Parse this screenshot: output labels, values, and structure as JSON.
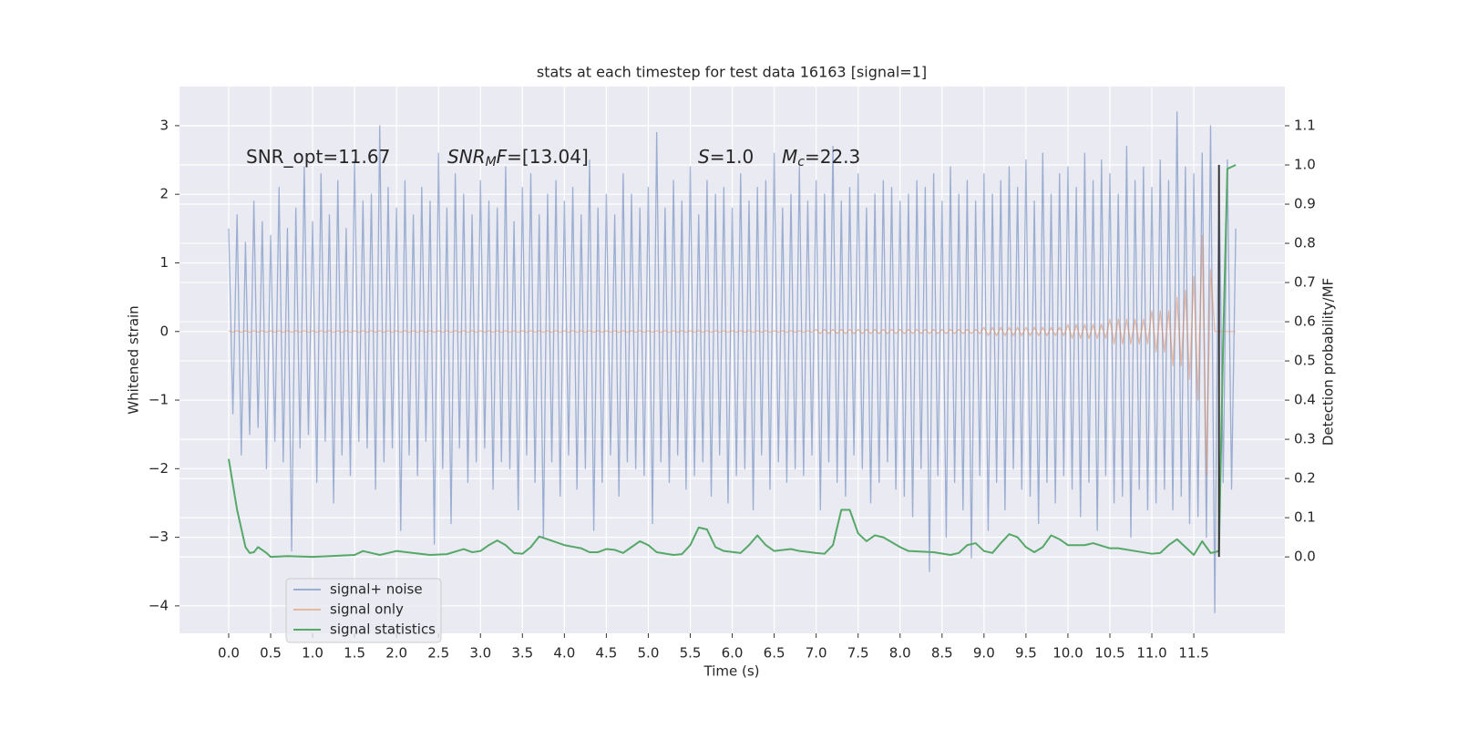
{
  "chart_data": {
    "type": "line",
    "title": "stats at each timestep for test data 16163 [signal=1]",
    "xlabel": "Time (s)",
    "ylabel": "Whitened strain",
    "y2label": "Detection probability/MF",
    "xlim": [
      -0.586,
      12.585
    ],
    "ylim": [
      -4.4,
      3.57
    ],
    "y2lim": [
      -0.195,
      1.2
    ],
    "xticks": [
      {
        "value": 0,
        "label": "0.0"
      },
      0.5,
      {
        "value": 1,
        "label": "1.0"
      },
      1.5,
      {
        "value": 2,
        "label": "2.0"
      },
      2.5,
      {
        "value": 3,
        "label": "3.0"
      },
      3.5,
      {
        "value": 4,
        "label": "4.0"
      },
      4.5,
      {
        "value": 5,
        "label": "5.0"
      },
      5.5,
      {
        "value": 6,
        "label": "6.0"
      },
      6.5,
      {
        "value": 7,
        "label": "7.0"
      },
      7.5,
      {
        "value": 8,
        "label": "8.0"
      },
      8.5,
      {
        "value": 9,
        "label": "9.0"
      },
      9.5,
      {
        "value": 10,
        "label": "10.0"
      },
      10.5,
      {
        "value": 11,
        "label": "11.0"
      },
      11.5
    ],
    "yticks": [
      {
        "value": -4,
        "label": "−4"
      },
      {
        "value": -3,
        "label": "−3"
      },
      {
        "value": -2,
        "label": "−2"
      },
      {
        "value": -1,
        "label": "−1"
      },
      0,
      1,
      2,
      3
    ],
    "y2ticks": [
      {
        "value": 0,
        "label": "0.0"
      },
      0.1,
      0.2,
      0.3,
      0.4,
      0.5,
      0.6,
      0.7,
      0.8,
      0.9,
      {
        "value": 1,
        "label": "1.0"
      },
      1.1
    ],
    "grid": true,
    "legend": "lower left",
    "annotations": [
      [
        {
          "text": "SNR_opt=11.67"
        }
      ],
      [
        {
          "text": "SNR",
          "italic": true
        },
        {
          "text": "M",
          "italic": true,
          "sub": true
        },
        {
          "text": "F",
          "italic": true
        },
        {
          "text": "=[13.04]"
        }
      ],
      [
        {
          "text": "S",
          "italic": true
        },
        {
          "text": "=1.0"
        }
      ],
      [
        {
          "text": "M",
          "italic": true
        },
        {
          "text": "c",
          "italic": true,
          "sub": true
        },
        {
          "text": "=22.3"
        }
      ]
    ],
    "x": [
      0,
      0.05,
      0.1,
      0.15,
      0.2,
      0.25,
      0.3,
      0.35,
      0.4,
      0.45,
      0.5,
      0.55,
      0.6,
      0.65,
      0.7,
      0.75,
      0.8,
      0.85,
      0.9,
      0.95,
      1,
      1.05,
      1.1,
      1.15,
      1.2,
      1.25,
      1.3,
      1.35,
      1.4,
      1.45,
      1.5,
      1.55,
      1.6,
      1.65,
      1.7,
      1.75,
      1.8,
      1.85,
      1.9,
      1.95,
      2,
      2.05,
      2.1,
      2.15,
      2.2,
      2.25,
      2.3,
      2.35,
      2.4,
      2.45,
      2.5,
      2.55,
      2.6,
      2.65,
      2.7,
      2.75,
      2.8,
      2.85,
      2.9,
      2.95,
      3,
      3.05,
      3.1,
      3.15,
      3.2,
      3.25,
      3.3,
      3.35,
      3.4,
      3.45,
      3.5,
      3.55,
      3.6,
      3.65,
      3.7,
      3.75,
      3.8,
      3.85,
      3.9,
      3.95,
      4,
      4.05,
      4.1,
      4.15,
      4.2,
      4.25,
      4.3,
      4.35,
      4.4,
      4.45,
      4.5,
      4.55,
      4.6,
      4.65,
      4.7,
      4.75,
      4.8,
      4.85,
      4.9,
      4.95,
      5,
      5.05,
      5.1,
      5.15,
      5.2,
      5.25,
      5.3,
      5.35,
      5.4,
      5.45,
      5.5,
      5.55,
      5.6,
      5.65,
      5.7,
      5.75,
      5.8,
      5.85,
      5.9,
      5.95,
      6,
      6.05,
      6.1,
      6.15,
      6.2,
      6.25,
      6.3,
      6.35,
      6.4,
      6.45,
      6.5,
      6.55,
      6.6,
      6.65,
      6.7,
      6.75,
      6.8,
      6.85,
      6.9,
      6.95,
      7,
      7.05,
      7.1,
      7.15,
      7.2,
      7.25,
      7.3,
      7.35,
      7.4,
      7.45,
      7.5,
      7.55,
      7.6,
      7.65,
      7.7,
      7.75,
      7.8,
      7.85,
      7.9,
      7.95,
      8,
      8.05,
      8.1,
      8.15,
      8.2,
      8.25,
      8.3,
      8.35,
      8.4,
      8.45,
      8.5,
      8.55,
      8.6,
      8.65,
      8.7,
      8.75,
      8.8,
      8.85,
      8.9,
      8.95,
      9,
      9.05,
      9.1,
      9.15,
      9.2,
      9.25,
      9.3,
      9.35,
      9.4,
      9.45,
      9.5,
      9.55,
      9.6,
      9.65,
      9.7,
      9.75,
      9.8,
      9.85,
      9.9,
      9.95,
      10,
      10.05,
      10.1,
      10.15,
      10.2,
      10.25,
      10.3,
      10.35,
      10.4,
      10.45,
      10.5,
      10.55,
      10.6,
      10.65,
      10.7,
      10.75,
      10.8,
      10.85,
      10.9,
      10.95,
      11,
      11.05,
      11.1,
      11.15,
      11.2,
      11.25,
      11.3,
      11.35,
      11.4,
      11.45,
      11.5,
      11.55,
      11.6,
      11.65,
      11.7,
      11.75,
      11.8,
      11.85,
      11.9,
      11.95,
      12
    ],
    "series": [
      {
        "name": "signal+ noise",
        "color": "#4c72b0",
        "alpha": 0.5,
        "values": [
          1.5,
          -1.2,
          1.7,
          -1.8,
          1.3,
          -1.5,
          1.9,
          -1.4,
          1.6,
          -2.0,
          1.4,
          -1.6,
          2.1,
          -1.9,
          1.5,
          -3.2,
          1.8,
          -1.7,
          2.4,
          -1.5,
          1.6,
          -2.2,
          2.3,
          -1.6,
          1.7,
          -2.5,
          2.2,
          -1.8,
          1.5,
          -2.1,
          2.5,
          -1.6,
          1.9,
          -1.7,
          2.0,
          -2.3,
          3.0,
          -1.9,
          2.1,
          -1.7,
          1.8,
          -2.9,
          2.2,
          -1.8,
          1.7,
          -2.1,
          2.1,
          -1.6,
          1.9,
          -3.1,
          2.6,
          -2.0,
          1.8,
          -2.8,
          2.3,
          -1.7,
          2.0,
          -2.2,
          1.7,
          -1.9,
          2.2,
          -1.7,
          1.9,
          -2.3,
          1.8,
          -1.9,
          2.4,
          -2.0,
          1.6,
          -2.6,
          2.1,
          -1.8,
          2.3,
          -2.2,
          1.7,
          -3.0,
          2.0,
          -1.9,
          2.2,
          -2.4,
          1.9,
          -1.8,
          2.1,
          -2.3,
          1.7,
          -2.0,
          2.5,
          -2.9,
          1.8,
          -2.2,
          2.0,
          -1.8,
          1.7,
          -2.4,
          2.3,
          -1.9,
          2.0,
          -2.0,
          1.8,
          -2.1,
          2.1,
          -2.8,
          2.9,
          -1.9,
          1.8,
          -2.2,
          2.2,
          -1.8,
          1.9,
          -2.3,
          2.4,
          -2.1,
          1.7,
          -1.9,
          2.2,
          -2.4,
          2.0,
          -1.8,
          2.1,
          -2.5,
          1.8,
          -2.1,
          2.3,
          -2.0,
          1.9,
          -2.6,
          2.1,
          -1.8,
          2.2,
          -2.3,
          2.6,
          -1.9,
          1.8,
          -2.2,
          2.0,
          -2.0,
          2.4,
          -2.1,
          1.9,
          -1.8,
          2.2,
          -2.6,
          2.0,
          -1.9,
          2.7,
          -2.2,
          1.9,
          -2.4,
          2.1,
          -1.8,
          2.3,
          -2.0,
          1.8,
          -2.5,
          2.0,
          -2.2,
          2.2,
          -1.9,
          2.1,
          -2.3,
          1.9,
          -2.4,
          2.0,
          -2.7,
          2.2,
          -2.0,
          2.1,
          -3.5,
          2.3,
          -2.1,
          1.9,
          -3.0,
          2.4,
          -2.2,
          2.0,
          -2.6,
          2.2,
          -3.3,
          1.9,
          -2.1,
          2.3,
          -2.9,
          2.0,
          -2.2,
          2.2,
          -2.6,
          2.4,
          -2.0,
          2.1,
          -2.3,
          2.5,
          -2.4,
          1.9,
          -2.8,
          2.6,
          -2.2,
          2.0,
          -2.5,
          2.3,
          -2.1,
          2.4,
          -2.3,
          2.1,
          -2.7,
          2.6,
          -2.2,
          2.2,
          -2.9,
          2.5,
          -2.1,
          2.3,
          -2.5,
          2.0,
          -2.4,
          2.7,
          -3.0,
          2.2,
          -2.3,
          2.4,
          -2.6,
          2.1,
          -2.5,
          2.5,
          -2.3,
          2.2,
          -2.6,
          3.2,
          -2.4,
          2.4,
          -2.8,
          2.3,
          -2.7,
          2.6,
          -3.0,
          3.0,
          -4.1,
          2.4,
          -2.2,
          2.5,
          -2.3,
          1.5
        ]
      },
      {
        "name": "signal only",
        "color": "#dd8452",
        "alpha": 0.5,
        "values": [
          0.01,
          -0.01,
          0.01,
          -0.01,
          0.01,
          -0.01,
          0.01,
          -0.01,
          0.01,
          -0.01,
          0.01,
          -0.01,
          0.01,
          -0.01,
          0.01,
          -0.01,
          0.01,
          -0.01,
          0.01,
          -0.01,
          0.01,
          -0.01,
          0.01,
          -0.01,
          0.01,
          -0.01,
          0.01,
          -0.01,
          0.01,
          -0.01,
          0.01,
          -0.01,
          0.01,
          -0.01,
          0.01,
          -0.01,
          0.01,
          -0.01,
          0.01,
          -0.01,
          0.01,
          -0.01,
          0.01,
          -0.01,
          0.01,
          -0.01,
          0.01,
          -0.01,
          0.01,
          -0.01,
          0.01,
          -0.01,
          0.01,
          -0.01,
          0.01,
          -0.01,
          0.01,
          -0.01,
          0.01,
          -0.01,
          0.01,
          -0.01,
          0.01,
          -0.01,
          0.01,
          -0.01,
          0.01,
          -0.01,
          0.01,
          -0.01,
          0.01,
          -0.01,
          0.01,
          -0.01,
          0.01,
          -0.01,
          0.01,
          -0.01,
          0.01,
          -0.01,
          0.01,
          -0.01,
          0.01,
          -0.01,
          0.01,
          -0.01,
          0.01,
          -0.01,
          0.01,
          -0.01,
          0.01,
          -0.01,
          0.01,
          -0.01,
          0.01,
          -0.01,
          0.01,
          -0.01,
          0.01,
          -0.01,
          0.01,
          -0.01,
          0.01,
          -0.01,
          0.01,
          -0.01,
          0.01,
          -0.01,
          0.01,
          -0.01,
          0.01,
          -0.01,
          0.01,
          -0.01,
          0.01,
          -0.01,
          0.01,
          -0.01,
          0.01,
          -0.01,
          0.01,
          -0.01,
          0.01,
          -0.01,
          0.01,
          -0.01,
          0.01,
          -0.01,
          0.01,
          -0.01,
          0.01,
          -0.01,
          0.01,
          -0.01,
          0.01,
          -0.01,
          0.01,
          -0.01,
          0.01,
          -0.01,
          0.03,
          -0.03,
          0.03,
          -0.03,
          0.03,
          -0.03,
          0.03,
          -0.03,
          0.03,
          -0.03,
          0.03,
          -0.03,
          0.03,
          -0.03,
          0.03,
          -0.03,
          0.03,
          -0.03,
          0.03,
          -0.03,
          0.03,
          -0.03,
          0.03,
          -0.03,
          0.03,
          -0.03,
          0.03,
          -0.03,
          0.03,
          -0.03,
          0.03,
          -0.03,
          0.03,
          -0.03,
          0.03,
          -0.03,
          0.03,
          -0.03,
          0.03,
          -0.03,
          0.06,
          -0.06,
          0.06,
          -0.06,
          0.06,
          -0.06,
          0.06,
          -0.06,
          0.06,
          -0.06,
          0.06,
          -0.06,
          0.06,
          -0.06,
          0.06,
          -0.06,
          0.06,
          -0.06,
          0.06,
          -0.06,
          0.1,
          -0.1,
          0.1,
          -0.1,
          0.1,
          -0.1,
          0.1,
          -0.1,
          0.1,
          -0.1,
          0.18,
          -0.18,
          0.18,
          -0.18,
          0.18,
          -0.18,
          0.18,
          -0.18,
          0.18,
          -0.18,
          0.3,
          -0.3,
          0.3,
          -0.3,
          0.3,
          -0.5,
          0.5,
          -0.5,
          0.6,
          -0.7,
          0.8,
          -1.0,
          1.4,
          -2.1,
          0.9,
          0,
          0,
          0,
          0,
          0,
          0
        ]
      },
      {
        "name": "signal statistics",
        "color": "#55a868",
        "alpha": 1,
        "axis": "y2",
        "x": [
          0,
          0.1,
          0.2,
          0.25,
          0.3,
          0.35,
          0.45,
          0.5,
          0.7,
          1,
          1.3,
          1.5,
          1.6,
          1.7,
          1.8,
          2,
          2.2,
          2.4,
          2.6,
          2.8,
          2.9,
          3,
          3.1,
          3.2,
          3.3,
          3.4,
          3.5,
          3.6,
          3.7,
          3.8,
          4,
          4.2,
          4.3,
          4.4,
          4.5,
          4.6,
          4.7,
          4.8,
          4.9,
          5,
          5.1,
          5.3,
          5.4,
          5.5,
          5.6,
          5.7,
          5.8,
          5.9,
          6.1,
          6.2,
          6.3,
          6.4,
          6.5,
          6.7,
          6.8,
          7,
          7.1,
          7.2,
          7.3,
          7.4,
          7.5,
          7.6,
          7.7,
          7.8,
          8,
          8.1,
          8.4,
          8.6,
          8.7,
          8.8,
          8.9,
          9,
          9.1,
          9.2,
          9.3,
          9.4,
          9.5,
          9.6,
          9.7,
          9.8,
          9.9,
          10,
          10.2,
          10.3,
          10.5,
          10.6,
          10.8,
          11,
          11.1,
          11.2,
          11.3,
          11.4,
          11.5,
          11.6,
          11.65,
          11.7,
          11.75,
          11.8,
          11.85,
          11.9,
          12
        ],
        "values": [
          0.25,
          0.12,
          0.025,
          0.01,
          0.012,
          0.025,
          0.01,
          0,
          0.002,
          0,
          0.003,
          0.005,
          0.015,
          0.01,
          0.005,
          0.015,
          0.01,
          0.005,
          0.007,
          0.02,
          0.012,
          0.015,
          0.03,
          0.042,
          0.03,
          0.01,
          0.008,
          0.025,
          0.052,
          0.045,
          0.03,
          0.022,
          0.012,
          0.012,
          0.02,
          0.018,
          0.01,
          0.025,
          0.04,
          0.03,
          0.012,
          0.005,
          0.007,
          0.03,
          0.075,
          0.07,
          0.025,
          0.015,
          0.01,
          0.03,
          0.055,
          0.03,
          0.015,
          0.02,
          0.015,
          0.01,
          0.008,
          0.03,
          0.12,
          0.12,
          0.06,
          0.04,
          0.055,
          0.05,
          0.025,
          0.015,
          0.012,
          0.005,
          0.01,
          0.03,
          0.035,
          0.015,
          0.01,
          0.035,
          0.058,
          0.05,
          0.025,
          0.012,
          0.025,
          0.055,
          0.045,
          0.03,
          0.03,
          0.035,
          0.022,
          0.022,
          0.015,
          0.008,
          0.01,
          0.03,
          0.045,
          0.025,
          0.005,
          0.04,
          0.025,
          0.01,
          0.012,
          0.015,
          0.55,
          0.99,
          1
        ]
      }
    ],
    "vlines": [
      {
        "x": 11.8,
        "ymin": 0,
        "ymax": 1,
        "color": "#333333",
        "axis": "y2"
      }
    ]
  }
}
